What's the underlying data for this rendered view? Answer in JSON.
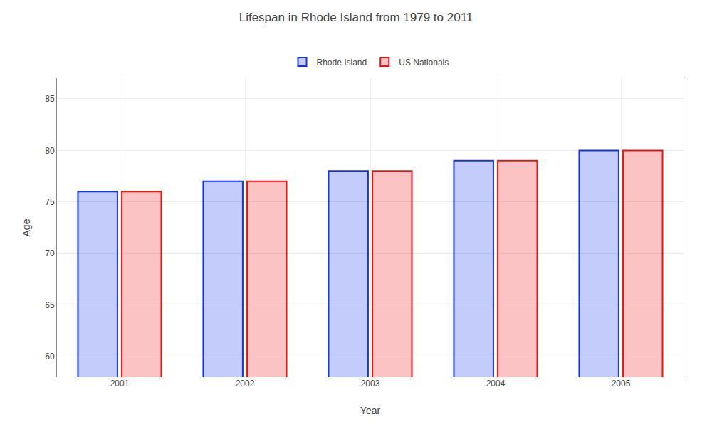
{
  "chart_data": {
    "type": "bar",
    "title": "Lifespan in Rhode Island from 1979 to 2011",
    "xlabel": "Year",
    "ylabel": "Age",
    "categories": [
      "2001",
      "2002",
      "2003",
      "2004",
      "2005"
    ],
    "series": [
      {
        "name": "Rhode Island",
        "color": "#1133ee",
        "values": [
          76,
          77,
          78,
          79,
          80
        ]
      },
      {
        "name": "US Nationals",
        "color": "#ee1111",
        "values": [
          76,
          77,
          78,
          79,
          80
        ]
      }
    ],
    "ylim": [
      58,
      87
    ],
    "yticks": [
      60,
      65,
      70,
      75,
      80,
      85
    ],
    "grid": true,
    "legend": "top"
  }
}
